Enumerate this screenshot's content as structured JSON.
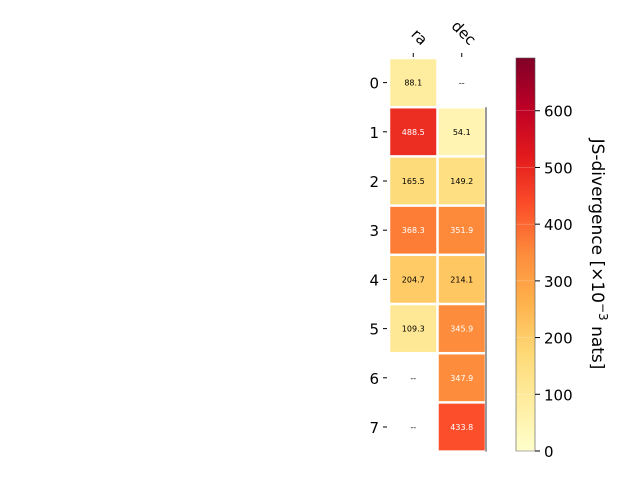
{
  "chart_data": {
    "type": "heatmap",
    "columns": [
      "ra",
      "dec"
    ],
    "rows": [
      "0",
      "1",
      "2",
      "3",
      "4",
      "5",
      "6",
      "7"
    ],
    "values": [
      [
        88.1,
        null
      ],
      [
        488.5,
        54.1
      ],
      [
        165.5,
        149.2
      ],
      [
        368.3,
        351.9
      ],
      [
        204.7,
        214.1
      ],
      [
        109.3,
        345.9
      ],
      [
        null,
        347.9
      ],
      [
        null,
        433.8
      ]
    ],
    "missing_label": "--",
    "colorbar": {
      "label": "JS-divergence [×10",
      "label_exp": "−3",
      "label_suffix": " nats]",
      "range": [
        0,
        693
      ],
      "ticks": [
        "0",
        "100",
        "200",
        "300",
        "400",
        "500",
        "600"
      ],
      "colormap": "YlOrRd"
    }
  }
}
